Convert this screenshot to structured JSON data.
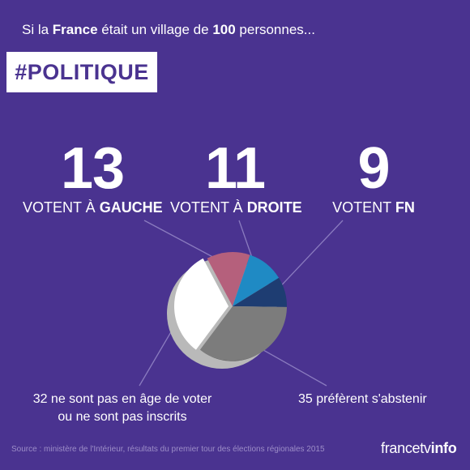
{
  "intro": {
    "prefix": "Si la ",
    "highlight": "France",
    "middle": " était un village de ",
    "number": "100",
    "suffix": " personnes..."
  },
  "tag": "#POLITIQUE",
  "chart_data": {
    "type": "pie",
    "title": "",
    "categories": [
      "VOTENT À GAUCHE",
      "VOTENT À DROITE",
      "VOTENT FN",
      "préfèrent s'abstenir",
      "ne sont pas en âge de voter ou ne sont pas inscrits"
    ],
    "values": [
      13,
      11,
      9,
      35,
      32
    ],
    "total": 100,
    "colors": [
      "#b5607c",
      "#1f8ac4",
      "#1e3d72",
      "#7c7c7c",
      "#ffffff"
    ],
    "shadow_color": "#b9b9b9",
    "highlight_gray_color": "#5f5f5f"
  },
  "stats": {
    "gauche": {
      "number": "13",
      "prefix": "VOTENT À ",
      "bold": "GAUCHE"
    },
    "droite": {
      "number": "11",
      "prefix": "VOTENT À ",
      "bold": "DROITE"
    },
    "fn": {
      "number": "9",
      "prefix": "VOTENT ",
      "bold": "FN"
    }
  },
  "notes": {
    "young_line1": "32 ne sont pas en âge de voter",
    "young_line2": "ou ne sont pas inscrits",
    "abstain": "35 préfèrent s'abstenir"
  },
  "source": "Source : ministère de l'Intérieur, résultats du premier tour des élections régionales 2015",
  "logo": {
    "part1": "francetv",
    "part2": "info"
  },
  "colors": {
    "background": "#4a3390",
    "leader_line": "#8a7bbf",
    "source_text": "#9c8dc7"
  }
}
